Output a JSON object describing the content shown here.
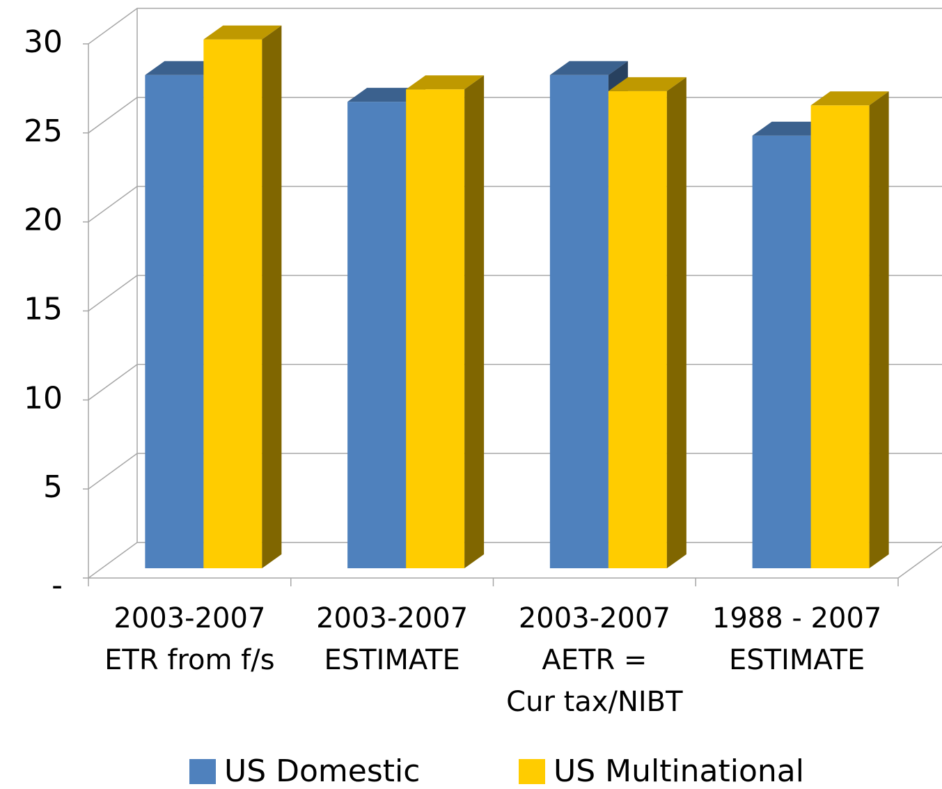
{
  "chart_data": {
    "type": "bar3d",
    "categories": [
      [
        "2003-2007",
        "ETR from f/s"
      ],
      [
        "2003-2007",
        "ESTIMATE"
      ],
      [
        "2003-2007",
        "AETR =",
        "Cur tax/NIBT"
      ],
      [
        "1988 - 2007",
        "ESTIMATE"
      ]
    ],
    "series": [
      {
        "name": "US Domestic",
        "color": "#4f81bd",
        "values": [
          27.7,
          26.2,
          27.7,
          24.3
        ]
      },
      {
        "name": "US Multinational",
        "color": "#ffcc00",
        "values": [
          29.7,
          26.9,
          26.8,
          26.0
        ]
      }
    ],
    "ylim": [
      0,
      30
    ],
    "yticks": [
      {
        "value": 0,
        "label": "-"
      },
      5,
      10,
      15,
      20,
      25,
      30
    ],
    "grid": true,
    "legend": "bottom"
  }
}
